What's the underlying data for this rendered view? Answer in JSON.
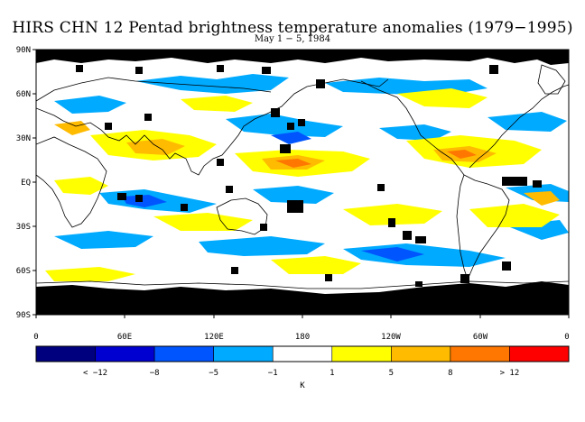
{
  "title": "HIRS CHN 12 Pentad brightness temperature anomalies (1979−1995)",
  "subtitle": "May 1 − 5, 1984",
  "map": {
    "projection": "cylindrical-equidistant",
    "lat_range": [
      -90,
      90
    ],
    "lon_range": [
      0,
      360
    ],
    "lat_labels": [
      "90N",
      "60N",
      "30N",
      "EQ",
      "30S",
      "60S",
      "90S"
    ],
    "lon_labels": [
      "0",
      "60E",
      "120E",
      "180",
      "120W",
      "60W",
      "0"
    ],
    "missing_data_color": "#000000",
    "coastline_color": "#000000"
  },
  "colorbar": {
    "unit": "K",
    "bins": [
      {
        "color": "#00007F"
      },
      {
        "color": "#0000D0"
      },
      {
        "color": "#0055FF"
      },
      {
        "color": "#00AAFF"
      },
      {
        "color": "#FFFFFF"
      },
      {
        "color": "#FFFF00"
      },
      {
        "color": "#FFBB00"
      },
      {
        "color": "#FF7700"
      },
      {
        "color": "#FF0000"
      }
    ],
    "labels": [
      "< −12",
      "−8",
      "−5",
      "−1",
      "1",
      "5",
      "8",
      "> 12"
    ]
  }
}
